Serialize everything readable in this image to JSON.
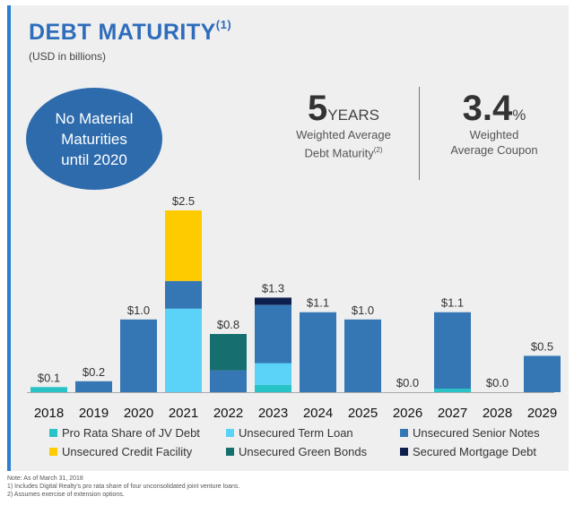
{
  "header": {
    "title": "DEBT MATURITY",
    "title_sup": "(1)",
    "subtitle": "(USD in billions)"
  },
  "callout": {
    "lines": [
      "No Material",
      "Maturities",
      "until 2020"
    ]
  },
  "stats": {
    "maturity_value": "5",
    "maturity_unit": "YEARS",
    "maturity_label_1": "Weighted Average",
    "maturity_label_2": "Debt Maturity",
    "maturity_sup": "(2)",
    "coupon_value": "3.4",
    "coupon_unit": "%",
    "coupon_label_1": "Weighted",
    "coupon_label_2": "Average Coupon"
  },
  "colors": {
    "panel_bg": "#efefef",
    "accent": "#2a7fd0",
    "title": "#2e6cbc",
    "circle": "#2d6bad"
  },
  "chart_data": {
    "type": "bar",
    "stacked": true,
    "categories": [
      "2018",
      "2019",
      "2020",
      "2021",
      "2022",
      "2023",
      "2024",
      "2025",
      "2026",
      "2027",
      "2028",
      "2029"
    ],
    "totals_labels": [
      "$0.1",
      "$0.2",
      "$1.0",
      "$2.5",
      "$0.8",
      "$1.3",
      "$1.1",
      "$1.0",
      "$0.0",
      "$1.1",
      "$0.0",
      "$0.5"
    ],
    "ylim": [
      0,
      2.5
    ],
    "grid": false,
    "legend_position": "bottom",
    "series": [
      {
        "name": "Pro Rata Share of JV Debt",
        "color": "#27c3c6",
        "values": [
          0.07,
          0.0,
          0.0,
          0.0,
          0.0,
          0.1,
          0.0,
          0.0,
          0.0,
          0.05,
          0.0,
          0.0
        ]
      },
      {
        "name": "Unsecured Term Loan",
        "color": "#5bd2f8",
        "values": [
          0.0,
          0.0,
          0.0,
          1.15,
          0.0,
          0.3,
          0.0,
          0.0,
          0.0,
          0.0,
          0.0,
          0.0
        ]
      },
      {
        "name": "Unsecured Senior Notes",
        "color": "#3577b4",
        "values": [
          0.0,
          0.15,
          1.0,
          0.38,
          0.3,
          0.8,
          1.1,
          1.0,
          0.0,
          1.05,
          0.0,
          0.5
        ]
      },
      {
        "name": "Unsecured Credit Facility",
        "color": "#fecb00",
        "values": [
          0.0,
          0.0,
          0.0,
          0.97,
          0.0,
          0.0,
          0.0,
          0.0,
          0.0,
          0.0,
          0.0,
          0.0
        ]
      },
      {
        "name": "Unsecured Green Bonds",
        "color": "#166e6e",
        "values": [
          0.0,
          0.0,
          0.0,
          0.0,
          0.5,
          0.0,
          0.0,
          0.0,
          0.0,
          0.0,
          0.0,
          0.0
        ]
      },
      {
        "name": "Secured Mortgage Debt",
        "color": "#0e1f4d",
        "values": [
          0.0,
          0.0,
          0.0,
          0.0,
          0.0,
          0.1,
          0.0,
          0.0,
          0.0,
          0.0,
          0.0,
          0.0
        ]
      }
    ]
  },
  "notes": [
    "Note: As of March 31, 2018",
    "1)  Includes Digital Realty's pro rata share of four unconsolidated joint venture loans.",
    "2)  Assumes exercise of extension options."
  ]
}
